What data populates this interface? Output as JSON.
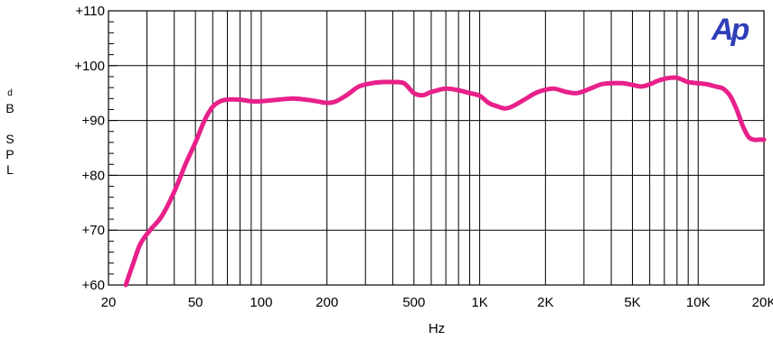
{
  "logo": {
    "text": "Ap",
    "color": "#2f3fb8"
  },
  "chart_data": {
    "type": "line",
    "xlabel": "Hz",
    "ylabel": "dB SPL",
    "x_scale": "log",
    "xlim": [
      20,
      20000
    ],
    "ylim": [
      60,
      110
    ],
    "grid": true,
    "line_color": "#e8208a",
    "x_ticks": [
      {
        "value": 20,
        "label": "20"
      },
      {
        "value": 50,
        "label": "50"
      },
      {
        "value": 100,
        "label": "100"
      },
      {
        "value": 200,
        "label": "200"
      },
      {
        "value": 500,
        "label": "500"
      },
      {
        "value": 1000,
        "label": "1K"
      },
      {
        "value": 2000,
        "label": "2K"
      },
      {
        "value": 5000,
        "label": "5K"
      },
      {
        "value": 10000,
        "label": "10K"
      },
      {
        "value": 20000,
        "label": "20K"
      }
    ],
    "y_ticks": [
      {
        "value": 60,
        "label": "+60"
      },
      {
        "value": 70,
        "label": "+70"
      },
      {
        "value": 80,
        "label": "+80"
      },
      {
        "value": 90,
        "label": "+90"
      },
      {
        "value": 100,
        "label": "+100"
      },
      {
        "value": 110,
        "label": "+110"
      }
    ],
    "series": [
      {
        "x": [
          24,
          26,
          28,
          31,
          35,
          40,
          45,
          50,
          55,
          60,
          65,
          70,
          80,
          90,
          100,
          120,
          140,
          160,
          180,
          200,
          220,
          250,
          280,
          320,
          360,
          400,
          450,
          500,
          550,
          600,
          700,
          800,
          900,
          1000,
          1100,
          1200,
          1300,
          1400,
          1600,
          1800,
          2000,
          2200,
          2500,
          2800,
          3200,
          3600,
          4000,
          4500,
          5000,
          5500,
          6000,
          6500,
          7000,
          7500,
          8000,
          8500,
          9000,
          10000,
          11000,
          12000,
          13000,
          14000,
          15000,
          16000,
          17000,
          18000,
          19000,
          20000
        ],
        "y": [
          60,
          64,
          67.5,
          70,
          72.5,
          77,
          82,
          86,
          90,
          92.5,
          93.5,
          93.8,
          93.8,
          93.5,
          93.5,
          93.8,
          94,
          93.8,
          93.5,
          93.2,
          93.5,
          94.8,
          96.2,
          96.8,
          97,
          97,
          96.8,
          95,
          94.6,
          95.2,
          95.8,
          95.5,
          95,
          94.5,
          93.2,
          92.6,
          92.2,
          92.5,
          93.8,
          95,
          95.6,
          95.8,
          95.2,
          95,
          95.8,
          96.6,
          96.8,
          96.8,
          96.5,
          96.2,
          96.6,
          97.2,
          97.6,
          97.8,
          97.8,
          97.4,
          97,
          96.8,
          96.6,
          96.2,
          95.8,
          94.5,
          92,
          89,
          87,
          86.5,
          86.5,
          86.5
        ]
      }
    ]
  }
}
